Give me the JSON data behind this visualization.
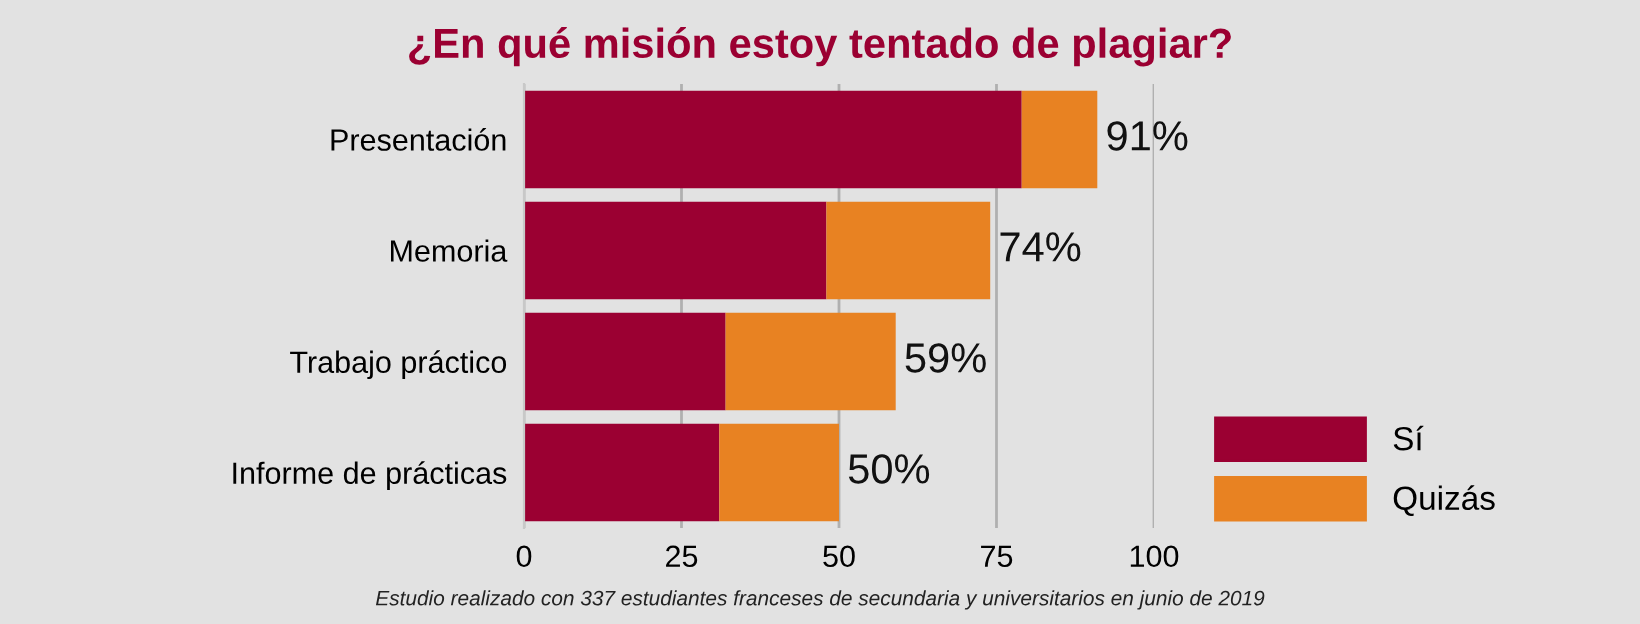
{
  "chart_data": {
    "type": "bar",
    "orientation": "horizontal",
    "stacked": true,
    "title": "¿En qué misión estoy tentado de plagiar?",
    "categories": [
      "Presentación",
      "Memoria",
      "Trabajo práctico",
      "Informe de prácticas"
    ],
    "series": [
      {
        "name": "Sí",
        "color": "#9b0032",
        "values": [
          79,
          48,
          32,
          31
        ]
      },
      {
        "name": "Quizás",
        "color": "#e88222",
        "values": [
          12,
          26,
          27,
          19
        ]
      }
    ],
    "totals": [
      "91%",
      "74%",
      "59%",
      "50%"
    ],
    "xlim": [
      0,
      100
    ],
    "xticks": [
      0,
      25,
      50,
      75,
      100
    ],
    "grid": "x",
    "legend": "right",
    "annotations": [
      "Estudio realizado con 337 estudiantes franceses de secundaria y universitarios en junio de 2019"
    ]
  }
}
